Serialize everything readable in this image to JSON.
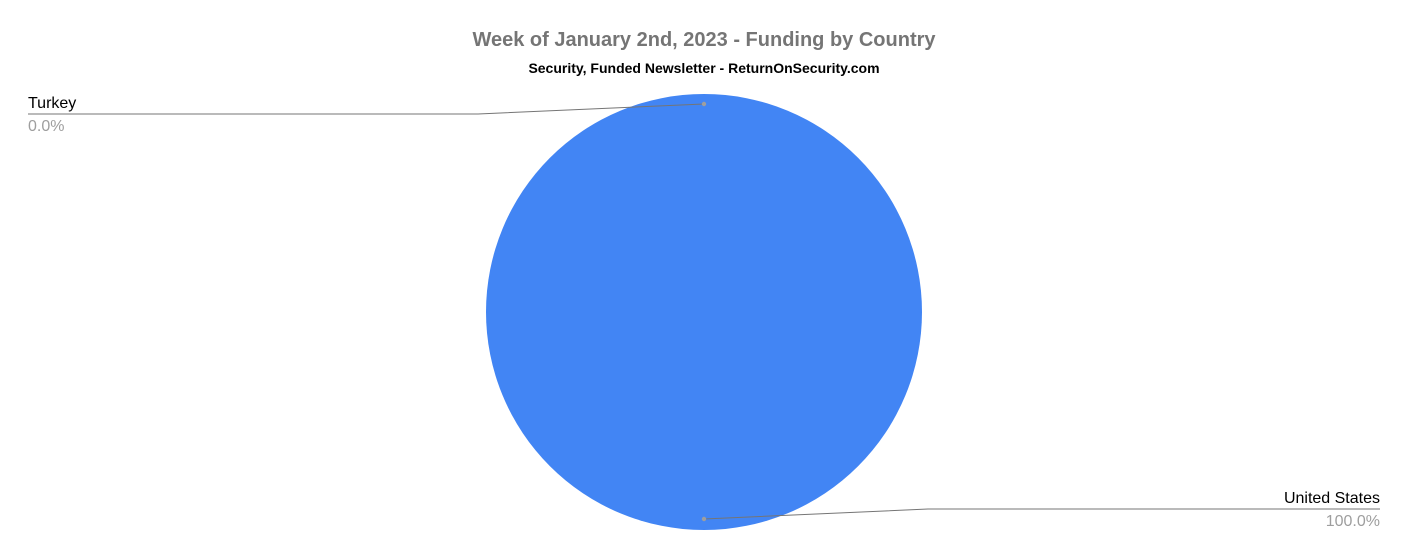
{
  "chart_data": {
    "type": "pie",
    "title": "Week of January 2nd, 2023 - Funding by Country",
    "subtitle": "Security, Funded Newsletter - ReturnOnSecurity.com",
    "slices": [
      {
        "label": "Turkey",
        "value": 0.0,
        "percent_label": "0.0%",
        "color": "#4285f4"
      },
      {
        "label": "United States",
        "value": 100.0,
        "percent_label": "100.0%",
        "color": "#4285f4"
      }
    ],
    "legend": "labels with leader lines"
  }
}
